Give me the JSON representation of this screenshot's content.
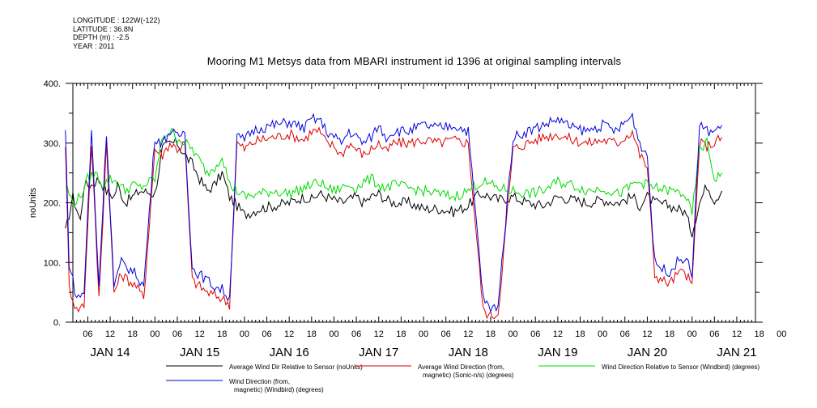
{
  "meta": {
    "longitude": "LONGITUDE : 122W(-122)",
    "latitude": "LATITUDE : 36.8N",
    "depth": "DEPTH (m) : -2.5",
    "year": "YEAR : 2011"
  },
  "chart_data": {
    "type": "line",
    "title": "Mooring M1 Metsys data from MBARI instrument id 1396 at original sampling intervals",
    "ylabel": "noUnits",
    "ylim": [
      0,
      400
    ],
    "yticks": [
      0,
      100,
      200,
      300,
      400
    ],
    "ytick_labels": [
      "0.",
      "100.",
      "200.",
      "300.",
      "400."
    ],
    "xlim_hours": [
      0,
      183
    ],
    "hour_tick_labels": [
      "06",
      "12",
      "18",
      "00",
      "06",
      "12",
      "18",
      "00",
      "06",
      "12",
      "18",
      "00",
      "06",
      "12",
      "18",
      "00",
      "06",
      "12",
      "18",
      "00",
      "06",
      "12",
      "18",
      "00",
      "06",
      "12",
      "18",
      "00",
      "06",
      "12",
      "18",
      "00"
    ],
    "day_labels": [
      "JAN 14",
      "JAN 15",
      "JAN 16",
      "JAN 17",
      "JAN 18",
      "JAN 19",
      "JAN 20",
      "JAN 21"
    ],
    "x_day_centers": [
      12,
      36,
      60,
      84,
      108,
      132,
      156,
      180
    ],
    "series": [
      {
        "name": "Average Wind Dir Relative to Sensor (noUnits)",
        "color": "#000000",
        "legend_lines": [
          "Average Wind Dir Relative to Sensor (noUnits)"
        ],
        "points": [
          [
            0,
            150
          ],
          [
            2,
            210
          ],
          [
            4,
            170
          ],
          [
            5,
            230
          ],
          [
            7,
            230
          ],
          [
            9,
            240
          ],
          [
            11,
            220
          ],
          [
            13,
            210
          ],
          [
            14,
            230
          ],
          [
            16,
            200
          ],
          [
            18,
            210
          ],
          [
            20,
            220
          ],
          [
            24,
            215
          ],
          [
            26,
            290
          ],
          [
            28,
            300
          ],
          [
            30,
            300
          ],
          [
            32,
            280
          ],
          [
            34,
            265
          ],
          [
            36,
            240
          ],
          [
            38,
            220
          ],
          [
            40,
            230
          ],
          [
            42,
            250
          ],
          [
            44,
            210
          ],
          [
            48,
            180
          ],
          [
            52,
            190
          ],
          [
            56,
            195
          ],
          [
            60,
            200
          ],
          [
            62,
            205
          ],
          [
            64,
            210
          ],
          [
            66,
            205
          ],
          [
            68,
            215
          ],
          [
            70,
            210
          ],
          [
            72,
            205
          ],
          [
            74,
            200
          ],
          [
            76,
            205
          ],
          [
            78,
            210
          ],
          [
            80,
            200
          ],
          [
            82,
            210
          ],
          [
            84,
            215
          ],
          [
            86,
            205
          ],
          [
            88,
            200
          ],
          [
            92,
            200
          ],
          [
            96,
            190
          ],
          [
            100,
            190
          ],
          [
            104,
            185
          ],
          [
            108,
            195
          ],
          [
            110,
            210
          ],
          [
            112,
            215
          ],
          [
            116,
            205
          ],
          [
            120,
            210
          ],
          [
            124,
            200
          ],
          [
            128,
            195
          ],
          [
            132,
            210
          ],
          [
            136,
            205
          ],
          [
            140,
            200
          ],
          [
            144,
            205
          ],
          [
            148,
            200
          ],
          [
            150,
            205
          ],
          [
            152,
            210
          ],
          [
            154,
            195
          ],
          [
            156,
            210
          ],
          [
            158,
            200
          ],
          [
            162,
            195
          ],
          [
            166,
            185
          ],
          [
            168,
            150
          ],
          [
            170,
            200
          ],
          [
            172,
            230
          ],
          [
            174,
            205
          ],
          [
            176,
            220
          ]
        ]
      },
      {
        "name": "Average Wind Direction (from, magnetic) (Sonic-n/s) (degrees)",
        "color": "#dd0000",
        "legend_lines": [
          "Average Wind Direction (from,",
          "magnetic) (Sonic-n/s) (degrees)"
        ],
        "points": [
          [
            0,
            300
          ],
          [
            1,
            60
          ],
          [
            3,
            20
          ],
          [
            5,
            30
          ],
          [
            7,
            300
          ],
          [
            9,
            40
          ],
          [
            11,
            300
          ],
          [
            13,
            50
          ],
          [
            15,
            80
          ],
          [
            17,
            70
          ],
          [
            19,
            60
          ],
          [
            21,
            40
          ],
          [
            24,
            290
          ],
          [
            26,
            280
          ],
          [
            28,
            300
          ],
          [
            30,
            290
          ],
          [
            32,
            300
          ],
          [
            34,
            70
          ],
          [
            36,
            60
          ],
          [
            38,
            50
          ],
          [
            40,
            45
          ],
          [
            42,
            40
          ],
          [
            44,
            30
          ],
          [
            46,
            300
          ],
          [
            48,
            290
          ],
          [
            50,
            300
          ],
          [
            52,
            305
          ],
          [
            56,
            310
          ],
          [
            60,
            315
          ],
          [
            64,
            305
          ],
          [
            66,
            320
          ],
          [
            68,
            320
          ],
          [
            70,
            300
          ],
          [
            72,
            295
          ],
          [
            74,
            280
          ],
          [
            76,
            300
          ],
          [
            78,
            290
          ],
          [
            80,
            280
          ],
          [
            82,
            290
          ],
          [
            84,
            300
          ],
          [
            86,
            285
          ],
          [
            88,
            300
          ],
          [
            92,
            300
          ],
          [
            96,
            305
          ],
          [
            100,
            300
          ],
          [
            104,
            305
          ],
          [
            108,
            300
          ],
          [
            112,
            20
          ],
          [
            114,
            10
          ],
          [
            116,
            15
          ],
          [
            120,
            290
          ],
          [
            124,
            300
          ],
          [
            128,
            310
          ],
          [
            132,
            315
          ],
          [
            136,
            305
          ],
          [
            140,
            300
          ],
          [
            144,
            305
          ],
          [
            148,
            300
          ],
          [
            150,
            310
          ],
          [
            152,
            320
          ],
          [
            154,
            280
          ],
          [
            156,
            260
          ],
          [
            158,
            80
          ],
          [
            160,
            70
          ],
          [
            162,
            65
          ],
          [
            164,
            80
          ],
          [
            166,
            85
          ],
          [
            168,
            60
          ],
          [
            170,
            300
          ],
          [
            172,
            295
          ],
          [
            174,
            300
          ],
          [
            176,
            310
          ]
        ]
      },
      {
        "name": "Wind Direction Relative to Sensor (Windbird) (degrees)",
        "color": "#00dd00",
        "legend_lines": [
          "Wind Direction Relative to Sensor (Windbird) (degrees)"
        ],
        "points": [
          [
            0,
            230
          ],
          [
            2,
            200
          ],
          [
            4,
            210
          ],
          [
            6,
            240
          ],
          [
            8,
            250
          ],
          [
            10,
            230
          ],
          [
            12,
            240
          ],
          [
            14,
            235
          ],
          [
            16,
            220
          ],
          [
            18,
            230
          ],
          [
            20,
            225
          ],
          [
            24,
            240
          ],
          [
            26,
            310
          ],
          [
            28,
            320
          ],
          [
            30,
            310
          ],
          [
            32,
            300
          ],
          [
            34,
            290
          ],
          [
            36,
            270
          ],
          [
            38,
            250
          ],
          [
            40,
            260
          ],
          [
            42,
            280
          ],
          [
            44,
            230
          ],
          [
            48,
            210
          ],
          [
            52,
            215
          ],
          [
            56,
            220
          ],
          [
            60,
            215
          ],
          [
            62,
            220
          ],
          [
            64,
            225
          ],
          [
            66,
            230
          ],
          [
            68,
            235
          ],
          [
            70,
            225
          ],
          [
            72,
            220
          ],
          [
            74,
            225
          ],
          [
            76,
            230
          ],
          [
            78,
            225
          ],
          [
            80,
            235
          ],
          [
            82,
            240
          ],
          [
            84,
            230
          ],
          [
            86,
            225
          ],
          [
            88,
            230
          ],
          [
            92,
            225
          ],
          [
            96,
            220
          ],
          [
            100,
            215
          ],
          [
            104,
            210
          ],
          [
            108,
            220
          ],
          [
            110,
            230
          ],
          [
            112,
            235
          ],
          [
            116,
            225
          ],
          [
            120,
            220
          ],
          [
            124,
            215
          ],
          [
            128,
            220
          ],
          [
            132,
            235
          ],
          [
            136,
            230
          ],
          [
            140,
            220
          ],
          [
            144,
            225
          ],
          [
            148,
            215
          ],
          [
            150,
            220
          ],
          [
            152,
            230
          ],
          [
            154,
            235
          ],
          [
            156,
            230
          ],
          [
            158,
            225
          ],
          [
            162,
            220
          ],
          [
            166,
            215
          ],
          [
            168,
            180
          ],
          [
            170,
            290
          ],
          [
            172,
            300
          ],
          [
            174,
            240
          ],
          [
            176,
            250
          ]
        ]
      },
      {
        "name": "Wind Direction (from, magnetic) (Windbird) (degrees)",
        "color": "#0000dd",
        "legend_lines": [
          "Wind Direction (from,",
          "magnetic) (Windbird) (degrees)"
        ],
        "points": [
          [
            0,
            320
          ],
          [
            1,
            100
          ],
          [
            3,
            40
          ],
          [
            5,
            50
          ],
          [
            7,
            320
          ],
          [
            9,
            60
          ],
          [
            11,
            320
          ],
          [
            13,
            60
          ],
          [
            15,
            100
          ],
          [
            17,
            90
          ],
          [
            19,
            80
          ],
          [
            21,
            60
          ],
          [
            24,
            310
          ],
          [
            26,
            300
          ],
          [
            28,
            320
          ],
          [
            30,
            310
          ],
          [
            32,
            320
          ],
          [
            34,
            90
          ],
          [
            36,
            80
          ],
          [
            38,
            70
          ],
          [
            40,
            60
          ],
          [
            42,
            55
          ],
          [
            44,
            40
          ],
          [
            46,
            310
          ],
          [
            48,
            305
          ],
          [
            50,
            320
          ],
          [
            52,
            325
          ],
          [
            56,
            330
          ],
          [
            60,
            335
          ],
          [
            64,
            325
          ],
          [
            66,
            340
          ],
          [
            68,
            340
          ],
          [
            70,
            320
          ],
          [
            72,
            310
          ],
          [
            74,
            300
          ],
          [
            76,
            320
          ],
          [
            78,
            310
          ],
          [
            80,
            300
          ],
          [
            82,
            310
          ],
          [
            84,
            330
          ],
          [
            86,
            310
          ],
          [
            88,
            320
          ],
          [
            92,
            320
          ],
          [
            96,
            330
          ],
          [
            100,
            325
          ],
          [
            104,
            330
          ],
          [
            108,
            320
          ],
          [
            112,
            40
          ],
          [
            114,
            20
          ],
          [
            116,
            30
          ],
          [
            120,
            310
          ],
          [
            124,
            320
          ],
          [
            128,
            330
          ],
          [
            132,
            340
          ],
          [
            136,
            325
          ],
          [
            140,
            320
          ],
          [
            144,
            330
          ],
          [
            148,
            320
          ],
          [
            150,
            335
          ],
          [
            152,
            345
          ],
          [
            154,
            300
          ],
          [
            156,
            280
          ],
          [
            158,
            100
          ],
          [
            160,
            90
          ],
          [
            162,
            85
          ],
          [
            164,
            100
          ],
          [
            166,
            110
          ],
          [
            168,
            80
          ],
          [
            170,
            330
          ],
          [
            172,
            320
          ],
          [
            174,
            320
          ],
          [
            176,
            330
          ]
        ]
      }
    ]
  }
}
